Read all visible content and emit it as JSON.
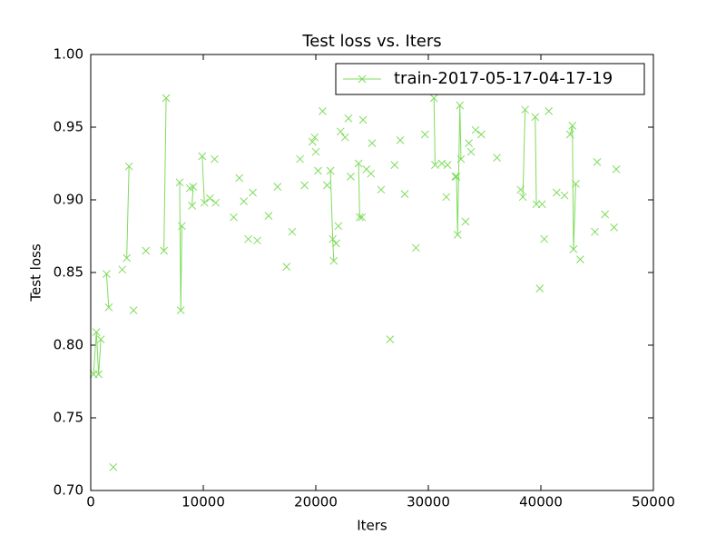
{
  "chart_data": {
    "type": "line",
    "title": "Test loss  vs. Iters",
    "xlabel": "Iters",
    "ylabel": "Test loss",
    "legend": "upper right",
    "x": [
      250,
      500,
      700,
      900,
      null,
      1400,
      1600,
      null,
      2000,
      null,
      2800,
      null,
      3200,
      3400,
      null,
      3800,
      null,
      4900,
      null,
      6500,
      6700,
      null,
      7900,
      8000,
      8100,
      null,
      8800,
      null,
      9000,
      9100,
      null,
      9900,
      10100,
      null,
      10600,
      null,
      11000,
      null,
      11100,
      null,
      12700,
      null,
      13200,
      null,
      13600,
      null,
      14000,
      null,
      14400,
      null,
      14800,
      null,
      15800,
      null,
      16600,
      null,
      17400,
      null,
      17900,
      null,
      18600,
      null,
      19000,
      null,
      19700,
      null,
      19900,
      null,
      20000,
      null,
      20200,
      null,
      20600,
      null,
      21000,
      null,
      21300,
      21500,
      21600,
      null,
      21800,
      null,
      22000,
      null,
      22200,
      null,
      22600,
      null,
      22900,
      null,
      23100,
      null,
      23800,
      23900,
      24100,
      null,
      24200,
      null,
      24500,
      null,
      24900,
      null,
      25000,
      null,
      25800,
      null,
      26600,
      null,
      27000,
      null,
      27500,
      null,
      27900,
      null,
      28900,
      null,
      29700,
      null,
      30500,
      30600,
      null,
      31200,
      null,
      31600,
      null,
      31700,
      null,
      32400,
      null,
      32500,
      32600,
      32800,
      32900,
      null,
      33300,
      null,
      33600,
      null,
      33800,
      null,
      34200,
      null,
      34700,
      null,
      36100,
      null,
      38200,
      null,
      38400,
      38600,
      null,
      39500,
      39600,
      null,
      39900,
      null,
      40100,
      null,
      40300,
      null,
      40700,
      null,
      41400,
      null,
      42100,
      null,
      42600,
      42800,
      42900,
      43100,
      null,
      43500,
      null,
      44800,
      null,
      45000,
      null,
      45700,
      null,
      46500,
      null,
      46700
    ],
    "series": [
      {
        "name": "train-2017-05-17-04-17-19",
        "color": "#7fdc5c",
        "marker": "x",
        "values": [
          0.78,
          0.809,
          0.78,
          0.804,
          null,
          0.849,
          0.826,
          null,
          0.716,
          null,
          0.852,
          null,
          0.86,
          0.923,
          null,
          0.824,
          null,
          0.865,
          null,
          0.865,
          0.97,
          null,
          0.912,
          0.824,
          0.882,
          null,
          0.908,
          null,
          0.896,
          0.909,
          null,
          0.93,
          0.898,
          null,
          0.901,
          null,
          0.928,
          null,
          0.898,
          null,
          0.888,
          null,
          0.915,
          null,
          0.899,
          null,
          0.873,
          null,
          0.905,
          null,
          0.872,
          null,
          0.889,
          null,
          0.909,
          null,
          0.854,
          null,
          0.878,
          null,
          0.928,
          null,
          0.91,
          null,
          0.94,
          null,
          0.943,
          null,
          0.933,
          null,
          0.92,
          null,
          0.961,
          null,
          0.91,
          null,
          0.92,
          0.873,
          0.858,
          null,
          0.87,
          null,
          0.882,
          null,
          0.947,
          null,
          0.943,
          null,
          0.956,
          null,
          0.916,
          null,
          0.925,
          0.888,
          0.888,
          null,
          0.955,
          null,
          0.921,
          null,
          0.918,
          null,
          0.939,
          null,
          0.907,
          null,
          0.804,
          null,
          0.924,
          null,
          0.941,
          null,
          0.904,
          null,
          0.867,
          null,
          0.945,
          null,
          0.97,
          0.924,
          null,
          0.925,
          null,
          0.902,
          null,
          0.924,
          null,
          0.916,
          null,
          0.916,
          0.876,
          0.965,
          0.928,
          null,
          0.885,
          null,
          0.939,
          null,
          0.933,
          null,
          0.948,
          null,
          0.945,
          null,
          0.929,
          null,
          0.907,
          null,
          0.902,
          0.962,
          null,
          0.957,
          0.897,
          null,
          0.839,
          null,
          0.897,
          null,
          0.873,
          null,
          0.961,
          null,
          0.905,
          null,
          0.903,
          null,
          0.945,
          0.951,
          0.866,
          0.911,
          null,
          0.859,
          null,
          0.878,
          null,
          0.926,
          null,
          0.89,
          null,
          0.881,
          null,
          0.921
        ]
      }
    ],
    "xlim": [
      0,
      50000
    ],
    "xticks": [
      0,
      10000,
      20000,
      30000,
      40000,
      50000
    ],
    "ylim": [
      0.7,
      1.0
    ],
    "yticks": [
      {
        "value": 0.7,
        "label": "0.70"
      },
      0.75,
      {
        "value": 0.8,
        "label": "0.80"
      },
      0.85,
      {
        "value": 0.9,
        "label": "0.90"
      },
      0.95,
      {
        "value": 1.0,
        "label": "1.00"
      }
    ]
  }
}
